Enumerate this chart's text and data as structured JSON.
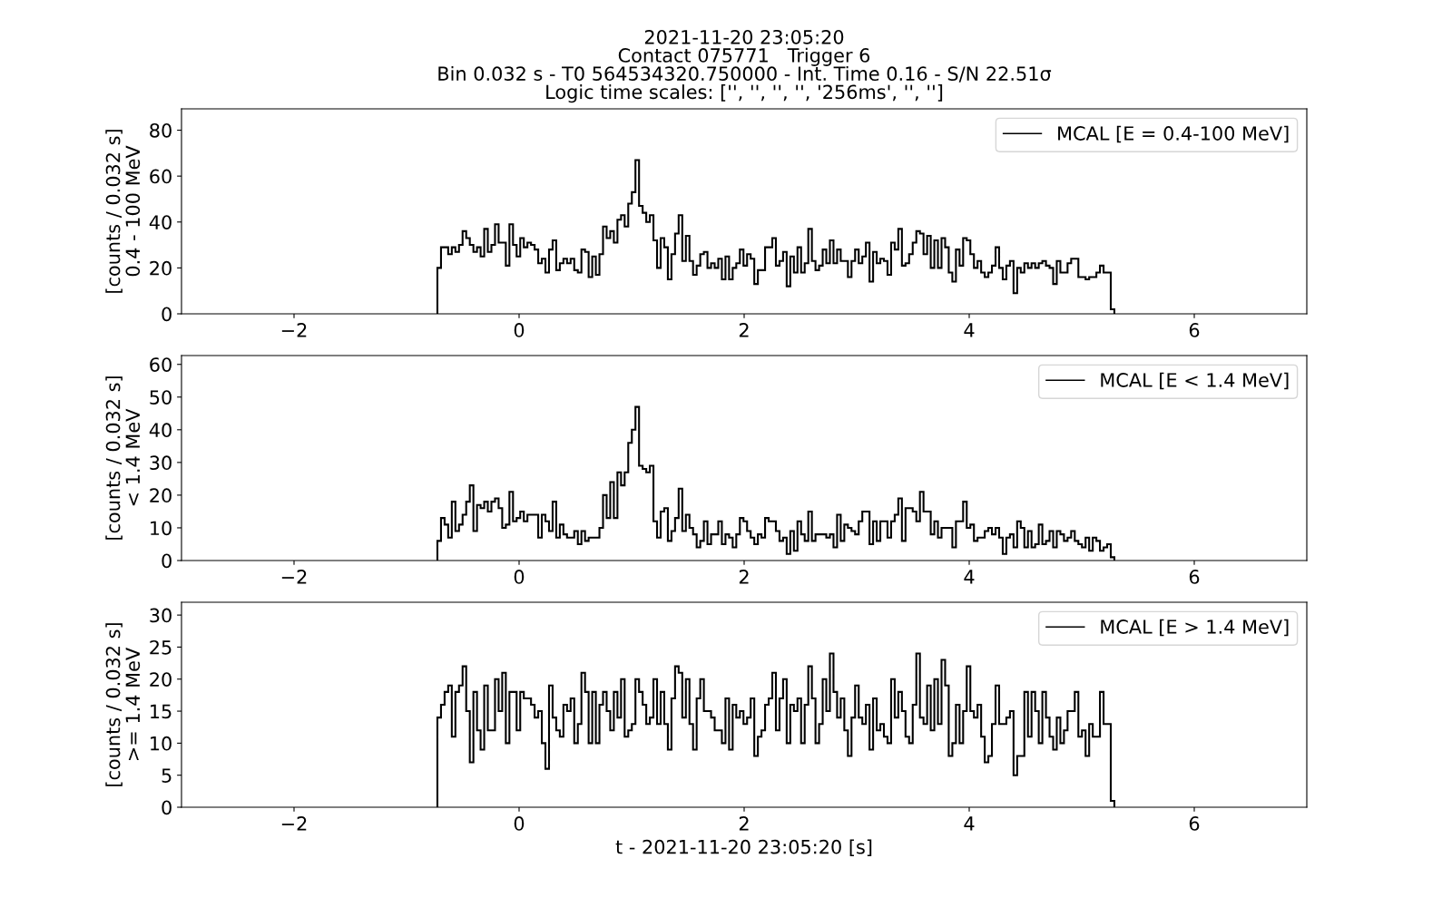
{
  "chart_data": [
    {
      "type": "histogram",
      "title": "2021-11-20 23:05:20\nContact 075771   Trigger 6\nBin 0.032 s - T0 564534320.750000 - Int. Time 0.16 - S/N 22.51σ\nLogic time scales: ['', '', '', '', '256ms', '', '']",
      "ylabel": "[counts / 0.032 s]\n0.4 - 100 MeV",
      "xlim": [
        -3,
        7
      ],
      "xticks": [
        -2,
        0,
        2,
        4,
        6
      ],
      "ylim": [
        0,
        89.3
      ],
      "yticks": [
        0,
        20,
        40,
        60,
        80
      ],
      "legend": "top right",
      "grid": false,
      "bins": [
        -0.726,
        -0.694,
        -0.662,
        -0.63,
        -0.598,
        -0.566,
        -0.534,
        -0.502,
        -0.47,
        -0.438,
        -0.406,
        -0.374,
        -0.342,
        -0.31,
        -0.278,
        -0.246,
        -0.214,
        -0.182,
        -0.15,
        -0.118,
        -0.086,
        -0.054,
        -0.022,
        0.01,
        0.042,
        0.074,
        0.106,
        0.138,
        0.17,
        0.202,
        0.234,
        0.266,
        0.298,
        0.33,
        0.362,
        0.394,
        0.426,
        0.458,
        0.49,
        0.522,
        0.554,
        0.586,
        0.618,
        0.65,
        0.682,
        0.714,
        0.746,
        0.778,
        0.81,
        0.842,
        0.874,
        0.906,
        0.938,
        0.97,
        1.002,
        1.034,
        1.066,
        1.098,
        1.13,
        1.162,
        1.194,
        1.226,
        1.258,
        1.29,
        1.322,
        1.354,
        1.386,
        1.418,
        1.45,
        1.482,
        1.514,
        1.546,
        1.578,
        1.61,
        1.642,
        1.674,
        1.706,
        1.738,
        1.77,
        1.802,
        1.834,
        1.866,
        1.898,
        1.93,
        1.962,
        1.994,
        2.026,
        2.058,
        2.09,
        2.122,
        2.154,
        2.186,
        2.218,
        2.25,
        2.282,
        2.314,
        2.346,
        2.378,
        2.41,
        2.442,
        2.474,
        2.506,
        2.538,
        2.57,
        2.602,
        2.634,
        2.666,
        2.698,
        2.73,
        2.762,
        2.794,
        2.826,
        2.858,
        2.89,
        2.922,
        2.954,
        2.986,
        3.018,
        3.05,
        3.082,
        3.114,
        3.146,
        3.178,
        3.21,
        3.242,
        3.274,
        3.306,
        3.338,
        3.37,
        3.402,
        3.434,
        3.466,
        3.498,
        3.53,
        3.562,
        3.594,
        3.626,
        3.658,
        3.69,
        3.722,
        3.754,
        3.786,
        3.818,
        3.85,
        3.882,
        3.914,
        3.946,
        3.978,
        4.01,
        4.042,
        4.074,
        4.106,
        4.138,
        4.17,
        4.202,
        4.234,
        4.266,
        4.298,
        4.33,
        4.362,
        4.394,
        4.426,
        4.458,
        4.49,
        4.522,
        4.554,
        4.586,
        4.618,
        4.65,
        4.682,
        4.714,
        4.746,
        4.778,
        4.81,
        4.842,
        4.874,
        4.906,
        4.938,
        4.97,
        5.002,
        5.034,
        5.066,
        5.098,
        5.13,
        5.162,
        5.194,
        5.226,
        5.258,
        5.29
      ],
      "series": [
        {
          "name": "MCAL [E = 0.4-100 MeV]",
          "color": "#000000",
          "values": [
            20,
            29,
            29,
            26,
            29,
            27,
            30,
            36,
            33,
            30,
            27,
            29,
            25,
            37,
            27,
            30,
            39,
            31,
            31,
            21,
            39,
            30,
            25,
            33,
            29,
            31,
            30,
            28,
            22,
            24,
            18,
            28,
            32,
            19,
            22,
            24,
            22,
            24,
            19,
            18,
            28,
            27,
            16,
            25,
            17,
            26,
            38,
            33,
            36,
            31,
            41,
            43,
            38,
            48,
            53,
            67,
            47,
            44,
            40,
            43,
            32,
            20,
            33,
            29,
            15,
            26,
            35,
            43,
            23,
            34,
            23,
            17,
            21,
            26,
            27,
            20,
            22,
            20,
            24,
            15,
            25,
            15,
            20,
            22,
            28,
            21,
            26,
            24,
            13,
            19,
            19,
            29,
            29,
            33,
            21,
            23,
            27,
            12,
            25,
            18,
            29,
            18,
            22,
            37,
            23,
            19,
            21,
            28,
            22,
            32,
            22,
            28,
            23,
            23,
            16,
            23,
            28,
            22,
            25,
            31,
            14,
            27,
            22,
            24,
            23,
            17,
            31,
            28,
            37,
            21,
            22,
            26,
            31,
            36,
            35,
            26,
            34,
            20,
            32,
            20,
            33,
            29,
            18,
            14,
            28,
            21,
            33,
            32,
            26,
            20,
            23,
            18,
            16,
            18,
            21,
            29,
            20,
            15,
            21,
            23,
            9,
            20,
            18,
            22,
            20,
            22,
            20,
            22,
            23,
            21,
            20,
            13,
            23,
            18,
            18,
            22,
            24,
            24,
            16,
            16,
            15,
            16,
            16,
            18,
            21,
            18,
            18,
            2
          ]
        }
      ]
    },
    {
      "type": "histogram",
      "ylabel": "[counts / 0.032 s]\n< 1.4 MeV",
      "xlim": [
        -3,
        7
      ],
      "xticks": [
        -2,
        0,
        2,
        4,
        6
      ],
      "ylim": [
        0,
        62.7
      ],
      "yticks": [
        0,
        10,
        20,
        30,
        40,
        50,
        60
      ],
      "legend": "top right",
      "grid": false,
      "bins": [
        -0.726,
        -0.694,
        -0.662,
        -0.63,
        -0.598,
        -0.566,
        -0.534,
        -0.502,
        -0.47,
        -0.438,
        -0.406,
        -0.374,
        -0.342,
        -0.31,
        -0.278,
        -0.246,
        -0.214,
        -0.182,
        -0.15,
        -0.118,
        -0.086,
        -0.054,
        -0.022,
        0.01,
        0.042,
        0.074,
        0.106,
        0.138,
        0.17,
        0.202,
        0.234,
        0.266,
        0.298,
        0.33,
        0.362,
        0.394,
        0.426,
        0.458,
        0.49,
        0.522,
        0.554,
        0.586,
        0.618,
        0.65,
        0.682,
        0.714,
        0.746,
        0.778,
        0.81,
        0.842,
        0.874,
        0.906,
        0.938,
        0.97,
        1.002,
        1.034,
        1.066,
        1.098,
        1.13,
        1.162,
        1.194,
        1.226,
        1.258,
        1.29,
        1.322,
        1.354,
        1.386,
        1.418,
        1.45,
        1.482,
        1.514,
        1.546,
        1.578,
        1.61,
        1.642,
        1.674,
        1.706,
        1.738,
        1.77,
        1.802,
        1.834,
        1.866,
        1.898,
        1.93,
        1.962,
        1.994,
        2.026,
        2.058,
        2.09,
        2.122,
        2.154,
        2.186,
        2.218,
        2.25,
        2.282,
        2.314,
        2.346,
        2.378,
        2.41,
        2.442,
        2.474,
        2.506,
        2.538,
        2.57,
        2.602,
        2.634,
        2.666,
        2.698,
        2.73,
        2.762,
        2.794,
        2.826,
        2.858,
        2.89,
        2.922,
        2.954,
        2.986,
        3.018,
        3.05,
        3.082,
        3.114,
        3.146,
        3.178,
        3.21,
        3.242,
        3.274,
        3.306,
        3.338,
        3.37,
        3.402,
        3.434,
        3.466,
        3.498,
        3.53,
        3.562,
        3.594,
        3.626,
        3.658,
        3.69,
        3.722,
        3.754,
        3.786,
        3.818,
        3.85,
        3.882,
        3.914,
        3.946,
        3.978,
        4.01,
        4.042,
        4.074,
        4.106,
        4.138,
        4.17,
        4.202,
        4.234,
        4.266,
        4.298,
        4.33,
        4.362,
        4.394,
        4.426,
        4.458,
        4.49,
        4.522,
        4.554,
        4.586,
        4.618,
        4.65,
        4.682,
        4.714,
        4.746,
        4.778,
        4.81,
        4.842,
        4.874,
        4.906,
        4.938,
        4.97,
        5.002,
        5.034,
        5.066,
        5.098,
        5.13,
        5.162,
        5.194,
        5.226,
        5.258,
        5.29
      ],
      "series": [
        {
          "name": "MCAL [E < 1.4 MeV]",
          "color": "#000000",
          "values": [
            6,
            13,
            11,
            7,
            18,
            9,
            11,
            14,
            18,
            23,
            9,
            17,
            16,
            18,
            15,
            18,
            19,
            16,
            10,
            11,
            21,
            12,
            13,
            15,
            12,
            14,
            14,
            14,
            7,
            14,
            12,
            9,
            18,
            7,
            11,
            8,
            7,
            7,
            9,
            5,
            9,
            6,
            7,
            7,
            7,
            10,
            20,
            13,
            24,
            13,
            27,
            23,
            27,
            36,
            40,
            47,
            29,
            28,
            27,
            29,
            12,
            7,
            15,
            16,
            6,
            9,
            13,
            22,
            9,
            14,
            10,
            8,
            4,
            6,
            12,
            5,
            8,
            8,
            12,
            5,
            8,
            7,
            4,
            8,
            13,
            12,
            9,
            7,
            5,
            8,
            7,
            13,
            12,
            12,
            9,
            6,
            7,
            2,
            9,
            3,
            12,
            8,
            6,
            15,
            6,
            8,
            8,
            8,
            7,
            8,
            4,
            14,
            6,
            11,
            10,
            9,
            8,
            12,
            15,
            15,
            5,
            12,
            6,
            12,
            12,
            7,
            12,
            14,
            19,
            6,
            16,
            16,
            15,
            12,
            21,
            15,
            15,
            8,
            12,
            7,
            10,
            10,
            10,
            4,
            12,
            12,
            18,
            10,
            11,
            6,
            7,
            7,
            9,
            10,
            8,
            10,
            7,
            2,
            7,
            8,
            4,
            12,
            10,
            4,
            9,
            4,
            5,
            11,
            5,
            6,
            9,
            4,
            9,
            8,
            6,
            7,
            9,
            6,
            5,
            4,
            7,
            3,
            7,
            6,
            3,
            4,
            5,
            1
          ]
        }
      ]
    },
    {
      "type": "histogram",
      "ylabel": "[counts / 0.032 s]\n>= 1.4 MeV",
      "xlabel": "t - 2021-11-20 23:05:20 [s]",
      "xlim": [
        -3,
        7
      ],
      "xticks": [
        -2,
        0,
        2,
        4,
        6
      ],
      "ylim": [
        0,
        32
      ],
      "yticks": [
        0,
        5,
        10,
        15,
        20,
        25,
        30
      ],
      "legend": "top right",
      "grid": false,
      "bins": [
        -0.726,
        -0.694,
        -0.662,
        -0.63,
        -0.598,
        -0.566,
        -0.534,
        -0.502,
        -0.47,
        -0.438,
        -0.406,
        -0.374,
        -0.342,
        -0.31,
        -0.278,
        -0.246,
        -0.214,
        -0.182,
        -0.15,
        -0.118,
        -0.086,
        -0.054,
        -0.022,
        0.01,
        0.042,
        0.074,
        0.106,
        0.138,
        0.17,
        0.202,
        0.234,
        0.266,
        0.298,
        0.33,
        0.362,
        0.394,
        0.426,
        0.458,
        0.49,
        0.522,
        0.554,
        0.586,
        0.618,
        0.65,
        0.682,
        0.714,
        0.746,
        0.778,
        0.81,
        0.842,
        0.874,
        0.906,
        0.938,
        0.97,
        1.002,
        1.034,
        1.066,
        1.098,
        1.13,
        1.162,
        1.194,
        1.226,
        1.258,
        1.29,
        1.322,
        1.354,
        1.386,
        1.418,
        1.45,
        1.482,
        1.514,
        1.546,
        1.578,
        1.61,
        1.642,
        1.674,
        1.706,
        1.738,
        1.77,
        1.802,
        1.834,
        1.866,
        1.898,
        1.93,
        1.962,
        1.994,
        2.026,
        2.058,
        2.09,
        2.122,
        2.154,
        2.186,
        2.218,
        2.25,
        2.282,
        2.314,
        2.346,
        2.378,
        2.41,
        2.442,
        2.474,
        2.506,
        2.538,
        2.57,
        2.602,
        2.634,
        2.666,
        2.698,
        2.73,
        2.762,
        2.794,
        2.826,
        2.858,
        2.89,
        2.922,
        2.954,
        2.986,
        3.018,
        3.05,
        3.082,
        3.114,
        3.146,
        3.178,
        3.21,
        3.242,
        3.274,
        3.306,
        3.338,
        3.37,
        3.402,
        3.434,
        3.466,
        3.498,
        3.53,
        3.562,
        3.594,
        3.626,
        3.658,
        3.69,
        3.722,
        3.754,
        3.786,
        3.818,
        3.85,
        3.882,
        3.914,
        3.946,
        3.978,
        4.01,
        4.042,
        4.074,
        4.106,
        4.138,
        4.17,
        4.202,
        4.234,
        4.266,
        4.298,
        4.33,
        4.362,
        4.394,
        4.426,
        4.458,
        4.49,
        4.522,
        4.554,
        4.586,
        4.618,
        4.65,
        4.682,
        4.714,
        4.746,
        4.778,
        4.81,
        4.842,
        4.874,
        4.906,
        4.938,
        4.97,
        5.002,
        5.034,
        5.066,
        5.098,
        5.13,
        5.162,
        5.194,
        5.226,
        5.258,
        5.29
      ],
      "series": [
        {
          "name": "MCAL [E > 1.4 MeV]",
          "color": "#000000",
          "values": [
            14,
            16,
            18,
            19,
            11,
            18,
            19,
            22,
            15,
            7,
            18,
            12,
            9,
            19,
            12,
            12,
            20,
            15,
            21,
            10,
            18,
            18,
            12,
            18,
            17,
            17,
            16,
            14,
            15,
            10,
            6,
            19,
            14,
            12,
            11,
            16,
            15,
            17,
            10,
            13,
            21,
            18,
            10,
            18,
            10,
            16,
            18,
            15,
            12,
            18,
            14,
            20,
            11,
            12,
            13,
            20,
            18,
            16,
            13,
            14,
            20,
            13,
            18,
            13,
            9,
            17,
            22,
            21,
            14,
            20,
            13,
            9,
            17,
            20,
            15,
            15,
            14,
            12,
            12,
            10,
            17,
            9,
            16,
            14,
            15,
            13,
            14,
            17,
            8,
            11,
            12,
            16,
            17,
            21,
            12,
            17,
            20,
            10,
            16,
            15,
            17,
            10,
            16,
            22,
            17,
            10,
            13,
            20,
            15,
            24,
            18,
            14,
            17,
            12,
            8,
            14,
            19,
            14,
            13,
            16,
            9,
            17,
            12,
            13,
            11,
            10,
            20,
            14,
            18,
            15,
            11,
            10,
            16,
            24,
            14,
            13,
            19,
            12,
            20,
            13,
            23,
            19,
            8,
            10,
            16,
            10,
            15,
            22,
            15,
            14,
            16,
            11,
            7,
            8,
            13,
            19,
            13,
            13,
            14,
            15,
            5,
            8,
            8,
            18,
            11,
            18,
            15,
            10,
            18,
            14,
            11,
            9,
            14,
            10,
            12,
            15,
            15,
            18,
            11,
            12,
            8,
            13,
            11,
            11,
            18,
            13,
            13,
            1
          ]
        }
      ]
    }
  ]
}
